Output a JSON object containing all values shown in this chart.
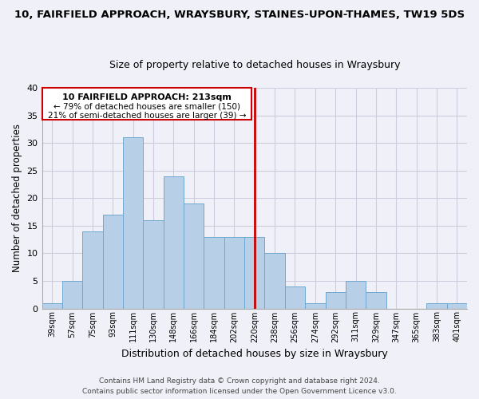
{
  "title1": "10, FAIRFIELD APPROACH, WRAYSBURY, STAINES-UPON-THAMES, TW19 5DS",
  "title2": "Size of property relative to detached houses in Wraysbury",
  "xlabel": "Distribution of detached houses by size in Wraysbury",
  "ylabel": "Number of detached properties",
  "bin_labels": [
    "39sqm",
    "57sqm",
    "75sqm",
    "93sqm",
    "111sqm",
    "130sqm",
    "148sqm",
    "166sqm",
    "184sqm",
    "202sqm",
    "220sqm",
    "238sqm",
    "256sqm",
    "274sqm",
    "292sqm",
    "311sqm",
    "329sqm",
    "347sqm",
    "365sqm",
    "383sqm",
    "401sqm"
  ],
  "bar_heights": [
    1,
    5,
    14,
    17,
    31,
    16,
    24,
    19,
    13,
    13,
    13,
    10,
    4,
    1,
    3,
    5,
    3,
    0,
    0,
    1,
    1
  ],
  "bar_color": "#b8cfe8",
  "bar_edge_color": "#6fa8d0",
  "annotation_text1": "10 FAIRFIELD APPROACH: 213sqm",
  "annotation_text2": "← 79% of detached houses are smaller (150)",
  "annotation_text3": "21% of semi-detached houses are larger (39) →",
  "vline_color": "#cc0000",
  "box_edge_color": "#cc0000",
  "ylim": [
    0,
    40
  ],
  "yticks": [
    0,
    5,
    10,
    15,
    20,
    25,
    30,
    35,
    40
  ],
  "footer1": "Contains HM Land Registry data © Crown copyright and database right 2024.",
  "footer2": "Contains public sector information licensed under the Open Government Licence v3.0.",
  "bg_color": "#f0f0f8",
  "grid_color": "#ccccdd"
}
